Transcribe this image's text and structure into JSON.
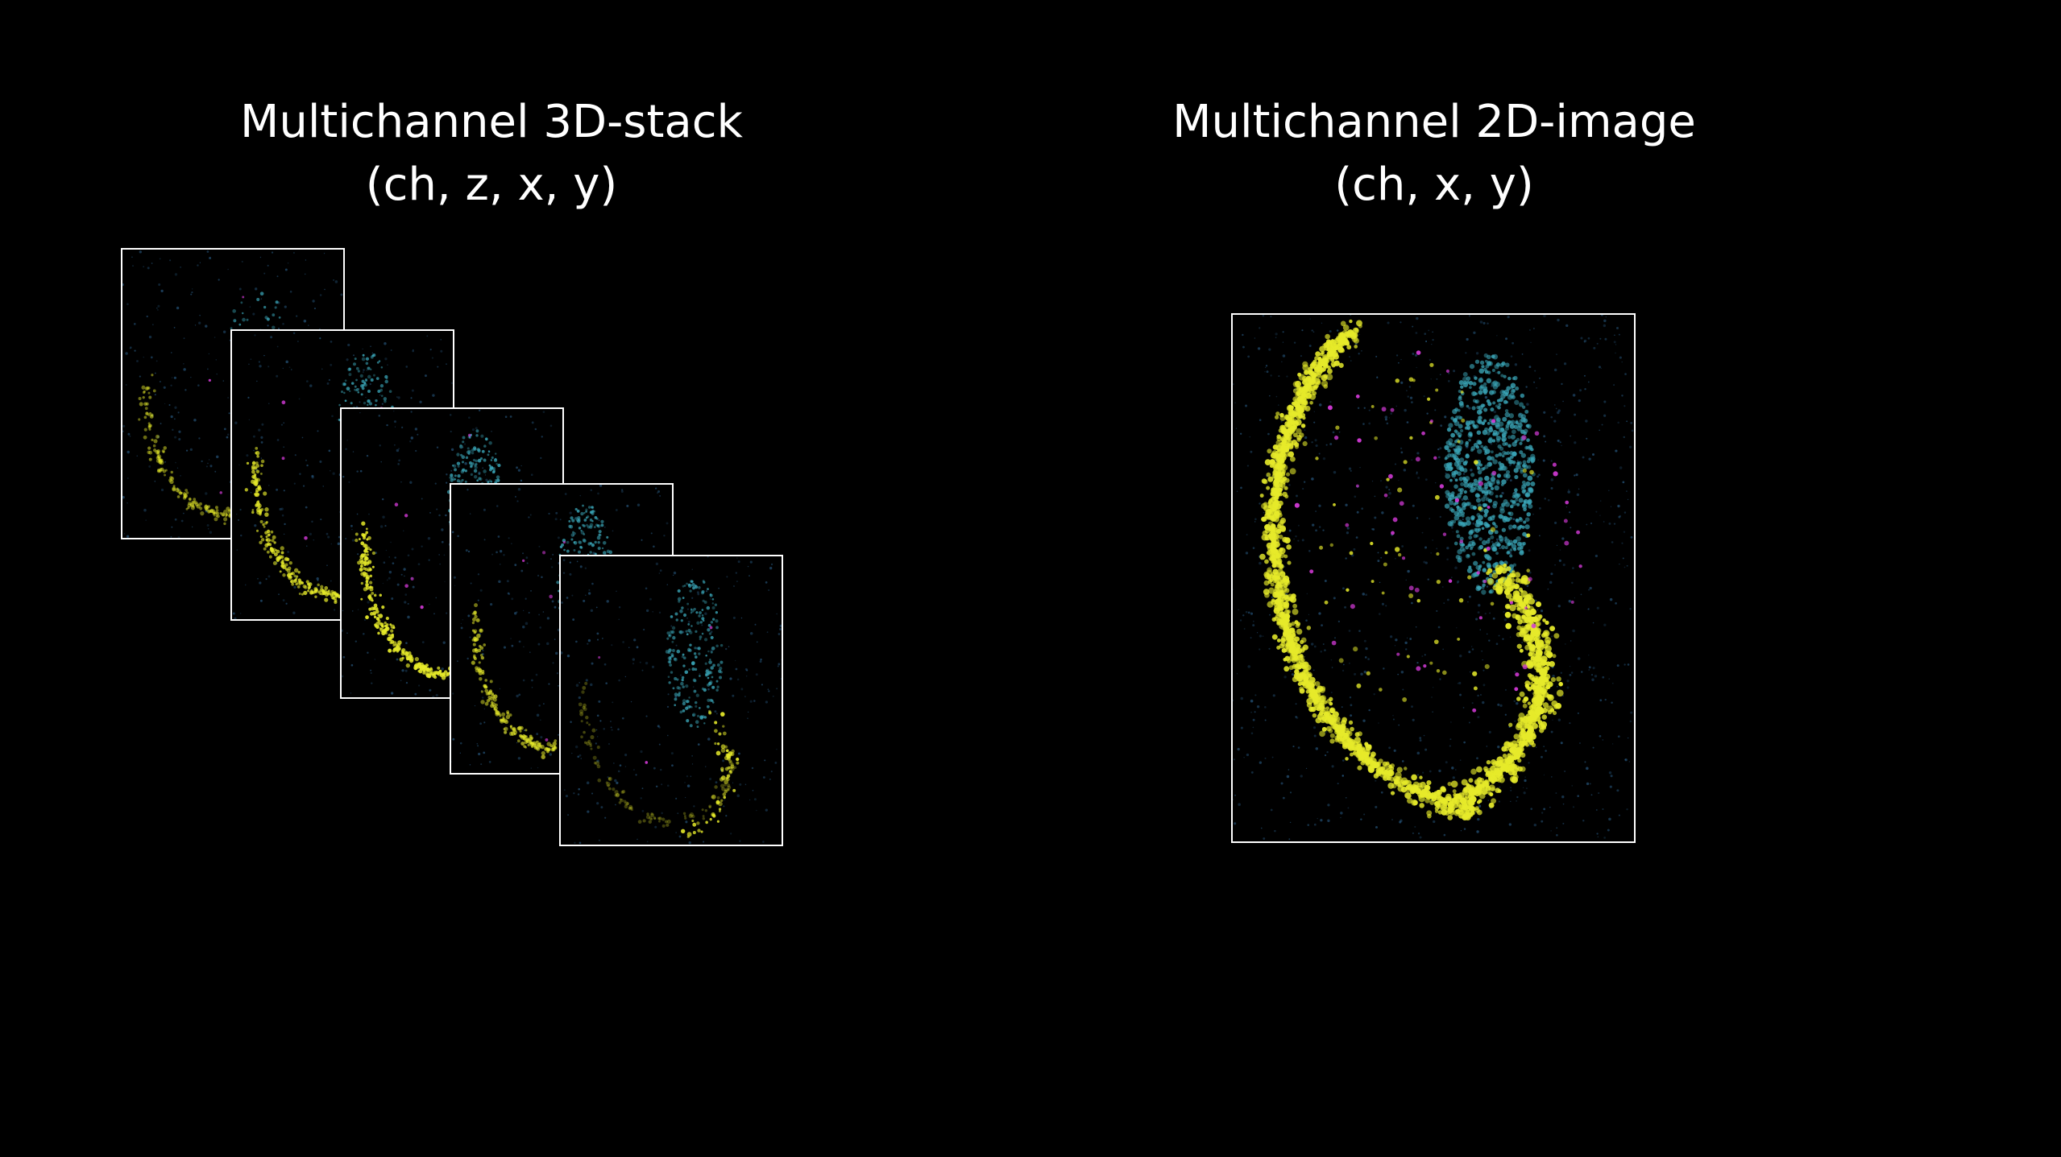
{
  "left_panel": {
    "title_line1": "Multichannel 3D-stack",
    "title_line2": "(ch, z, x, y)",
    "slice_count": 5
  },
  "right_panel": {
    "title_line1": "Multichannel 2D-image",
    "title_line2": "(ch, x, y)"
  },
  "colors": {
    "background": "#000000",
    "frame_border": "#ffffff",
    "nuclei_yellow": "#e6ea2a",
    "tissue_cyan": "#3aa6b8",
    "marker_magenta": "#d43ad8",
    "speckle_blue": "#2a5f8a"
  }
}
